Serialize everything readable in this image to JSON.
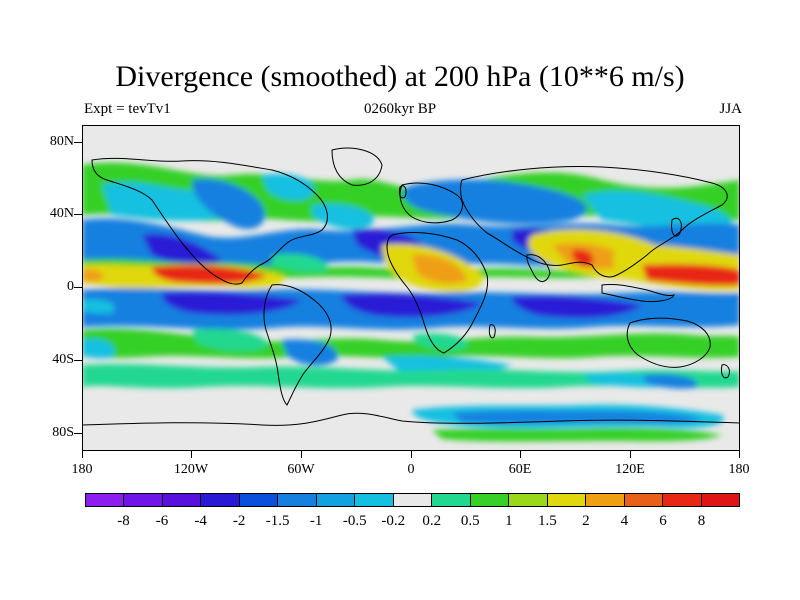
{
  "title": "Divergence (smoothed) at 200 hPa (10**6 m/s)",
  "subtitle_left": "Expt = tevTv1",
  "subtitle_center": "0260kyr BP",
  "subtitle_right": "JJA",
  "y_ticks": [
    "80N",
    "40N",
    "0",
    "40S",
    "80S"
  ],
  "x_ticks": [
    "180",
    "120W",
    "60W",
    "0",
    "60E",
    "120E",
    "180"
  ],
  "colorbar": {
    "labels": [
      "-8",
      "-6",
      "-4",
      "-2",
      "-1.5",
      "-1",
      "-0.5",
      "-0.2",
      "0.2",
      "0.5",
      "1",
      "1.5",
      "2",
      "4",
      "6",
      "8"
    ],
    "colors": [
      "#8a1ff0",
      "#7015e8",
      "#5a10dc",
      "#2a1ad6",
      "#0a50dc",
      "#1580e0",
      "#12a2e0",
      "#14c0e0",
      "#e9e9e9",
      "#20d890",
      "#36d028",
      "#9ad81a",
      "#e0d80a",
      "#ee9f12",
      "#e8601a",
      "#e82814",
      "#e01414"
    ]
  },
  "map_colors": {
    "background": "#e9e9e9",
    "strong_convergence": "#2a1ad6",
    "convergence": "#1580e0",
    "weak_convergence": "#14c0e0",
    "weak_divergence": "#20d890",
    "divergence": "#36d028",
    "moderate_divergence": "#e0d80a",
    "strong_divergence": "#ee9f12",
    "very_strong_divergence": "#e82814",
    "coastline": "#000000"
  }
}
